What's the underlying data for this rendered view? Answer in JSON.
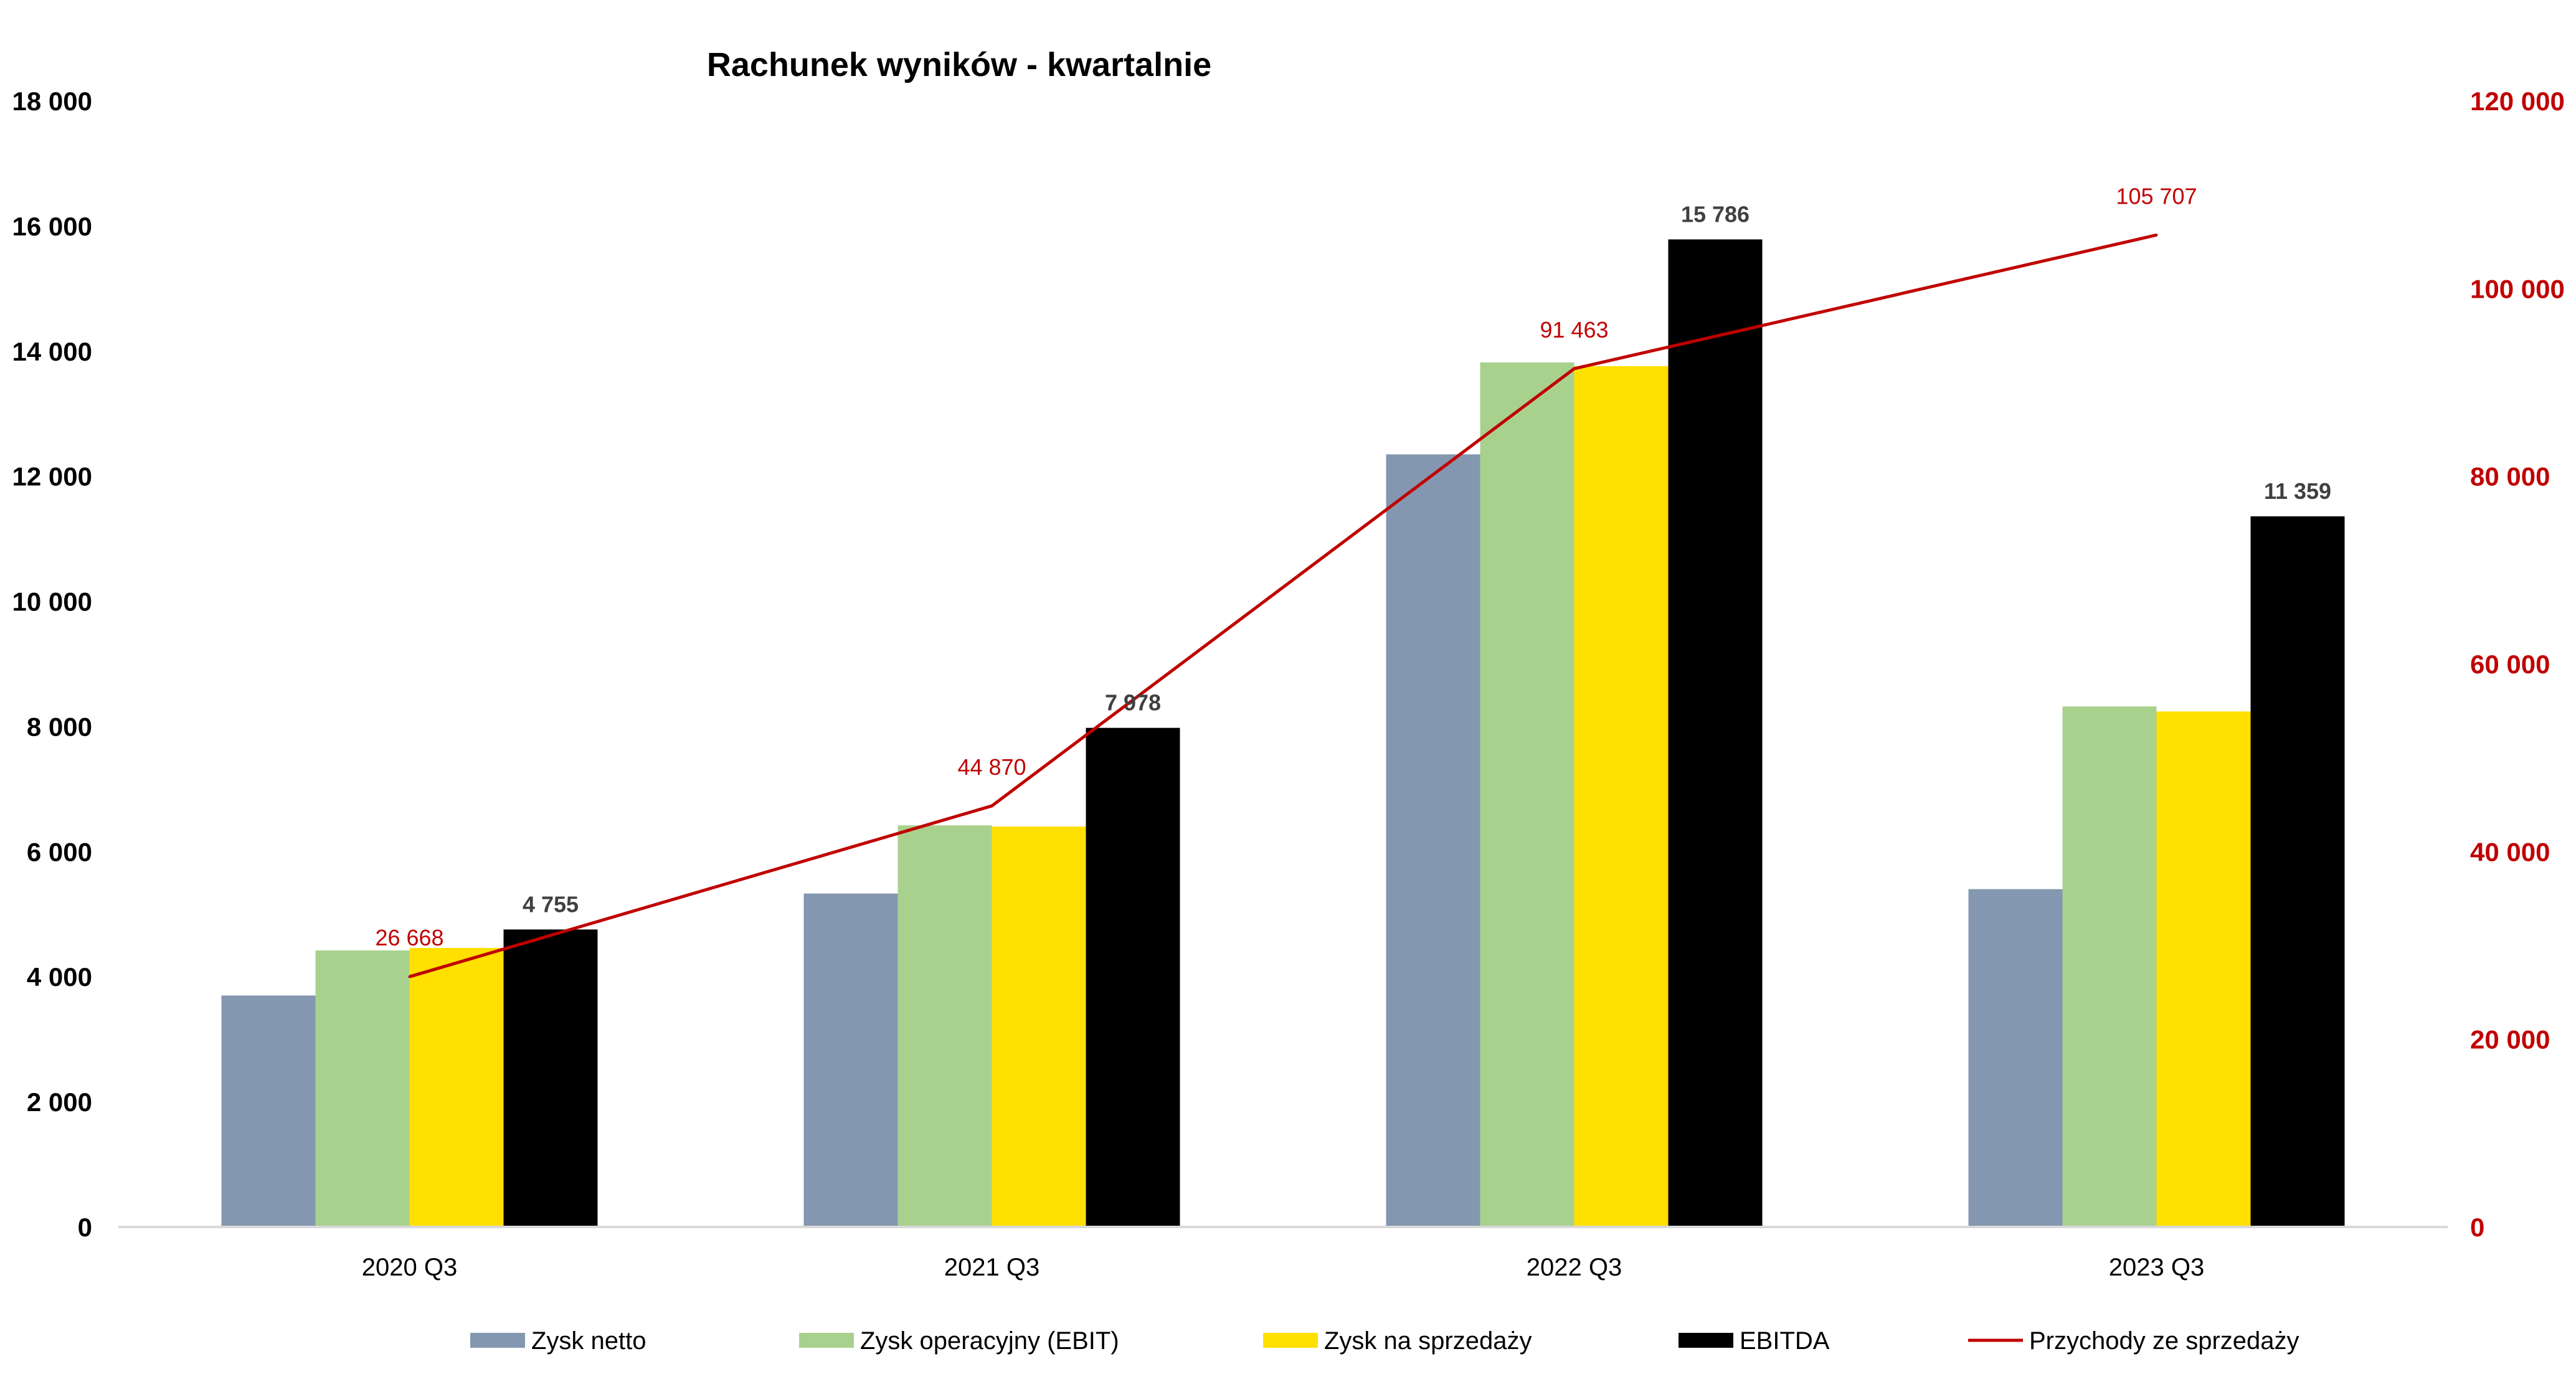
{
  "chart_data": {
    "type": "bar",
    "title": "Rachunek wyników - kwartalnie",
    "categories": [
      "2020 Q3",
      "2021 Q3",
      "2022 Q3",
      "2023 Q3"
    ],
    "ylim_left": [
      0,
      18000
    ],
    "ylim_right": [
      0,
      120000
    ],
    "yticks_left": [
      "0",
      "2 000",
      "4 000",
      "6 000",
      "8 000",
      "10 000",
      "12 000",
      "14 000",
      "16 000",
      "18 000"
    ],
    "yticks_right": [
      "0",
      "20 000",
      "40 000",
      "60 000",
      "80 000",
      "100 000",
      "120 000"
    ],
    "grid": false,
    "legend_position": "bottom",
    "series": [
      {
        "name": "Zysk netto",
        "type": "bar",
        "axis": "left",
        "color": "#8497b0",
        "values": [
          3700,
          5330,
          12350,
          5400
        ]
      },
      {
        "name": "Zysk operacyjny (EBIT)",
        "type": "bar",
        "axis": "left",
        "color": "#a9d18e",
        "values": [
          4420,
          6420,
          13820,
          8320
        ]
      },
      {
        "name": "Zysk na sprzedaży",
        "type": "bar",
        "axis": "left",
        "color": "#ffe000",
        "values": [
          4460,
          6400,
          13760,
          8240
        ]
      },
      {
        "name": "EBITDA",
        "type": "bar",
        "axis": "left",
        "color": "#000000",
        "values": [
          4755,
          7978,
          15786,
          11359
        ],
        "labels": [
          "4 755",
          "7 978",
          "15 786",
          "11 359"
        ]
      },
      {
        "name": "Przychody ze sprzedaży",
        "type": "line",
        "axis": "right",
        "color": "#c00000",
        "values": [
          26668,
          44870,
          91463,
          105707
        ],
        "labels": [
          "26 668",
          "44 870",
          "91 463",
          "105 707"
        ]
      }
    ]
  }
}
